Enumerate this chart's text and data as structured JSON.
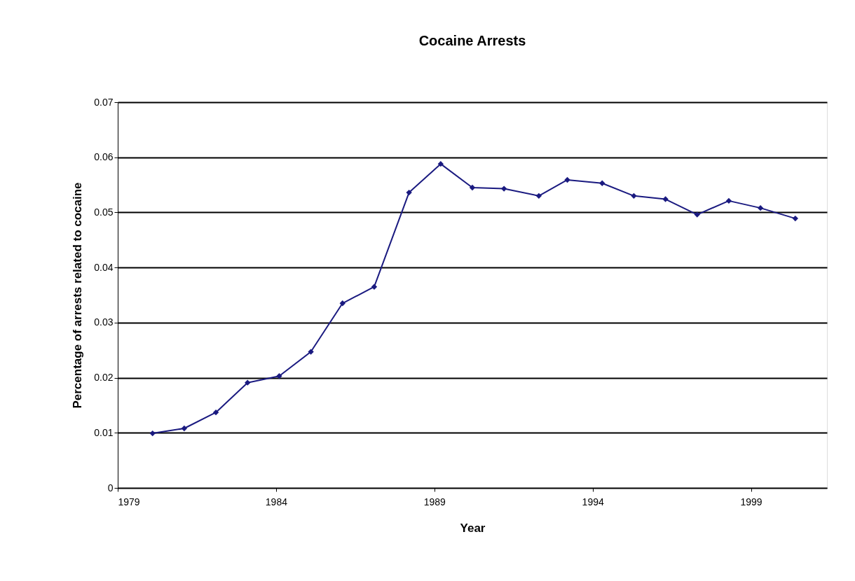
{
  "chart_data": {
    "type": "line",
    "title": "Cocaine Arrests",
    "xlabel": "Year",
    "ylabel": "Percentage of arrests related to cocaine",
    "x": [
      1980.1,
      1981.1,
      1982.1,
      1983.1,
      1984.1,
      1985.1,
      1986.1,
      1987.1,
      1988.2,
      1989.2,
      1990.2,
      1991.2,
      1992.3,
      1993.2,
      1994.3,
      1995.3,
      1996.3,
      1997.3,
      1998.3,
      1999.3,
      2000.4
    ],
    "series": [
      {
        "color": "#1a1a80",
        "values": [
          0.0099,
          0.0108,
          0.0137,
          0.0191,
          0.0203,
          0.0247,
          0.0335,
          0.0365,
          0.0536,
          0.0588,
          0.0545,
          0.0543,
          0.053,
          0.0559,
          0.0553,
          0.053,
          0.0524,
          0.0496,
          0.0521,
          0.0508,
          0.0489
        ]
      }
    ],
    "xlim": [
      1979,
      2001.4
    ],
    "xticks": [
      1979,
      1984,
      1989,
      1994,
      1999
    ],
    "ylim": [
      0,
      0.07
    ],
    "yticks": [
      0,
      0.01,
      0.02,
      0.03,
      0.04,
      0.05,
      0.06,
      0.07
    ],
    "grid": "y",
    "marker": "diamond",
    "line_style": "solid"
  }
}
